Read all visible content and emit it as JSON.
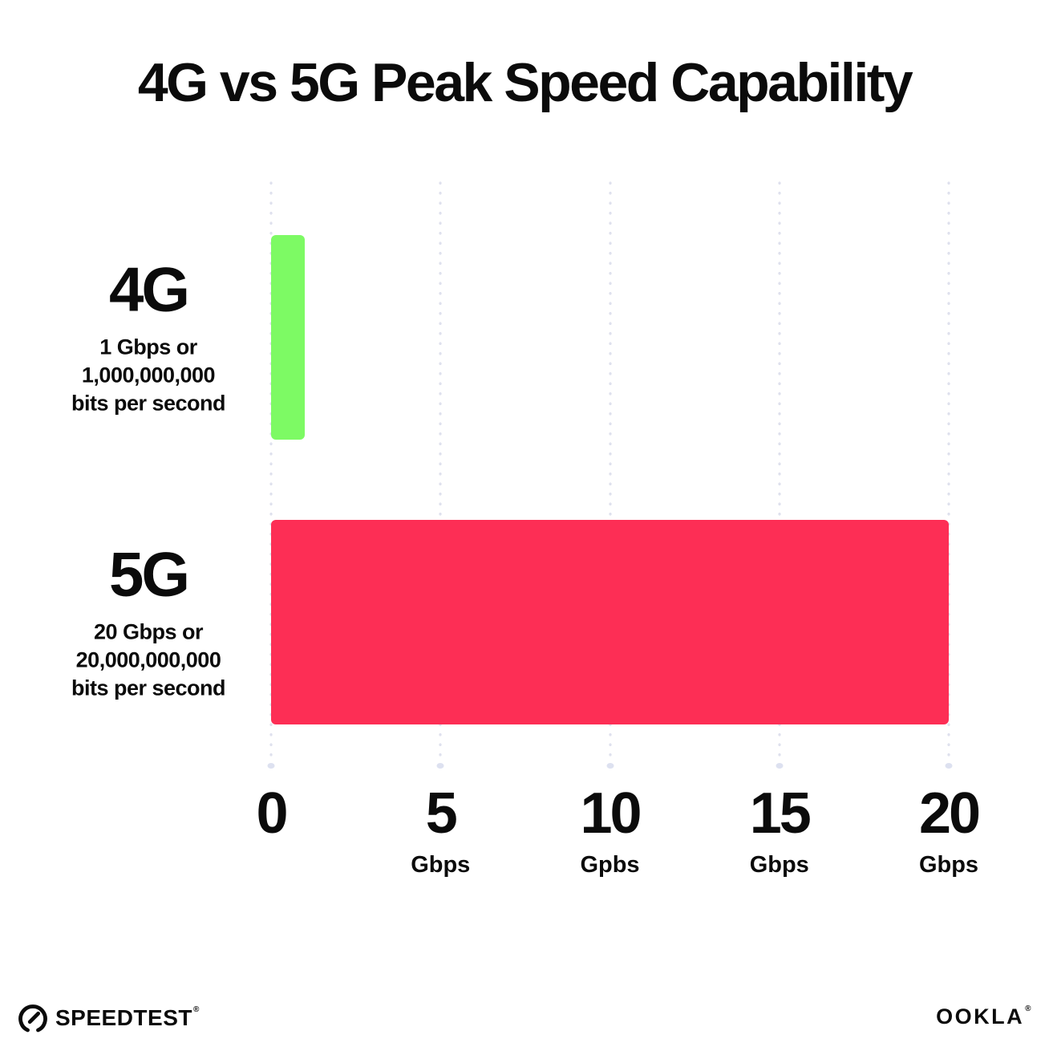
{
  "title": "4G vs 5G Peak Speed Capability",
  "chart_data": {
    "type": "bar",
    "orientation": "horizontal",
    "title": "4G vs 5G Peak Speed Capability",
    "xlim": [
      0,
      20
    ],
    "grid": "dotted vertical gridlines at each tick",
    "legend": "none",
    "categories": [
      "4G",
      "5G"
    ],
    "values_gbps": [
      1,
      20
    ],
    "bars": [
      {
        "label": "4G",
        "description_lines": [
          "1 Gbps or",
          "1,000,000,000",
          "bits per second"
        ],
        "value_gbps": 1,
        "color": "#7dfa64"
      },
      {
        "label": "5G",
        "description_lines": [
          "20 Gbps or",
          "20,000,000,000",
          "bits per second"
        ],
        "value_gbps": 20,
        "color": "#fd2e55"
      }
    ],
    "x_ticks": [
      {
        "value": 0,
        "label": "0",
        "unit": ""
      },
      {
        "value": 5,
        "label": "5",
        "unit": "Gbps"
      },
      {
        "value": 10,
        "label": "10",
        "unit": "Gpbs"
      },
      {
        "value": 15,
        "label": "15",
        "unit": "Gbps"
      },
      {
        "value": 20,
        "label": "20",
        "unit": "Gbps"
      }
    ]
  },
  "footer": {
    "speedtest_label": "SPEEDTEST",
    "speedtest_trademark": "®",
    "speedtest_icon": "speedtest-gauge-icon",
    "ookla_label": "OOKLA",
    "ookla_trademark": "®"
  },
  "colors": {
    "background": "#ffffff",
    "text": "#0b0b0b",
    "bar_4g": "#7dfa64",
    "bar_5g": "#fd2e55",
    "gridline_dot": "#dfe1ee"
  }
}
